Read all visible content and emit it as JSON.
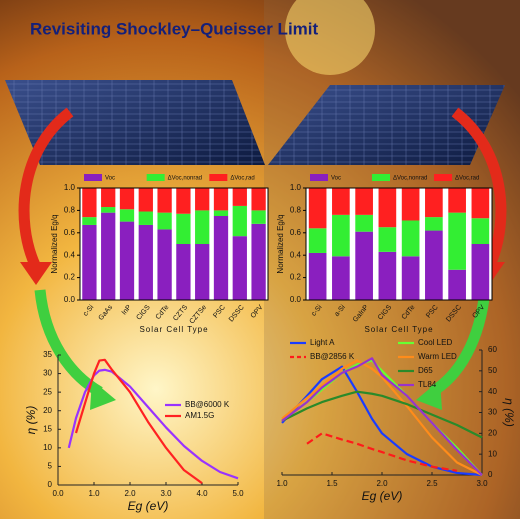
{
  "title": "Revisiting Shockley–Queisser Limit",
  "chart_data": [
    {
      "type": "stacked-bar",
      "ylabel": "Normalized Eg/q",
      "xlabel": "Solar Cell Type",
      "categories": [
        "c-Si",
        "GaAs",
        "InP",
        "CIGS",
        "CdTe",
        "CZTS",
        "CZTSe",
        "PSC",
        "DSSC",
        "OPV"
      ],
      "series": [
        {
          "name": "Voc",
          "color": "#8a1fbf",
          "values": [
            0.67,
            0.78,
            0.7,
            0.67,
            0.63,
            0.5,
            0.5,
            0.75,
            0.57,
            0.68
          ]
        },
        {
          "name": "ΔVoc,nonrad",
          "color": "#33ee33",
          "values": [
            0.07,
            0.05,
            0.11,
            0.12,
            0.15,
            0.27,
            0.3,
            0.05,
            0.27,
            0.12
          ]
        },
        {
          "name": "ΔVoc,rad",
          "color": "#ff2020",
          "values": [
            0.26,
            0.17,
            0.19,
            0.21,
            0.22,
            0.23,
            0.2,
            0.2,
            0.16,
            0.2
          ]
        }
      ],
      "ylim": [
        0,
        1
      ],
      "yticks": [
        {
          "value": 0,
          "label": "0.0"
        },
        0.2,
        0.4,
        0.6,
        0.8,
        {
          "value": 1,
          "label": "1.0"
        }
      ]
    },
    {
      "type": "stacked-bar",
      "ylabel": "Normalized Eg/q",
      "xlabel": "Solar Cell Type",
      "categories": [
        "c-Si",
        "a-Si",
        "GaInP",
        "CIGS",
        "CdTe",
        "PSC",
        "DSSC",
        "OPV"
      ],
      "series": [
        {
          "name": "Voc",
          "color": "#8a1fbf",
          "values": [
            0.42,
            0.39,
            0.61,
            0.43,
            0.39,
            0.62,
            0.27,
            0.5
          ]
        },
        {
          "name": "ΔVoc,nonrad",
          "color": "#33ee33",
          "values": [
            0.22,
            0.37,
            0.15,
            0.22,
            0.32,
            0.12,
            0.51,
            0.23
          ]
        },
        {
          "name": "ΔVoc,rad",
          "color": "#ff2020",
          "values": [
            0.36,
            0.24,
            0.24,
            0.35,
            0.29,
            0.26,
            0.22,
            0.27
          ]
        }
      ],
      "ylim": [
        0,
        1
      ],
      "yticks": [
        {
          "value": 0,
          "label": "0.0"
        },
        0.2,
        0.4,
        0.6,
        0.8,
        {
          "value": 1,
          "label": "1.0"
        }
      ]
    },
    {
      "type": "line",
      "xlabel": "Eg (eV)",
      "ylabel": "η (%)",
      "x": [
        0.3,
        0.5,
        0.75,
        1.0,
        1.15,
        1.3,
        1.5,
        2.0,
        2.5,
        3.0,
        3.5,
        4.0,
        4.5,
        5.0
      ],
      "series": [
        {
          "name": "BB@6000 K",
          "color": "#9933ff",
          "values": [
            10,
            18,
            25,
            29.5,
            30.8,
            31,
            30.5,
            26.5,
            21,
            15.5,
            10.5,
            6.5,
            3.5,
            1.8
          ]
        },
        {
          "name": "AM1.5G",
          "color": "#ff2222",
          "values": [
            null,
            14,
            22,
            30,
            33.5,
            33.7,
            31,
            25,
            17,
            10,
            4,
            0.5,
            null,
            null
          ]
        }
      ],
      "xlim": [
        0,
        5
      ],
      "xticks": [
        {
          "value": 0,
          "label": "0.0"
        },
        {
          "value": 1,
          "label": "1.0"
        },
        {
          "value": 2,
          "label": "2.0"
        },
        {
          "value": 3,
          "label": "3.0"
        },
        {
          "value": 4,
          "label": "4.0"
        },
        {
          "value": 5,
          "label": "5.0"
        }
      ],
      "ylim": [
        0,
        35
      ],
      "yticks": [
        0,
        5,
        10,
        15,
        20,
        25,
        30,
        35
      ]
    },
    {
      "type": "line",
      "xlabel": "Eg (eV)",
      "ylabel": "η (%)",
      "x": [
        1.0,
        1.25,
        1.4,
        1.6,
        1.75,
        1.9,
        2.0,
        2.25,
        2.5,
        2.75,
        3.0
      ],
      "series": [
        {
          "name": "Light A",
          "color": "#1a3cff",
          "values": [
            25,
            38,
            46,
            52,
            40,
            27,
            20,
            10,
            4,
            1,
            0
          ]
        },
        {
          "name": "BB@2856 K",
          "color": "#ff1a1a",
          "dash": true,
          "values": [
            null,
            15,
            20,
            17,
            15,
            12.5,
            11,
            7,
            4,
            2,
            null
          ]
        },
        {
          "name": "Cool LED",
          "color": "#66ff33",
          "values": [
            26,
            35,
            41,
            49,
            53,
            55,
            50,
            38,
            25,
            13,
            0
          ]
        },
        {
          "name": "Warm LED",
          "color": "#ff8c1a",
          "values": [
            27,
            37,
            43,
            51,
            55,
            51,
            47,
            33,
            18,
            6,
            0
          ]
        },
        {
          "name": "D65",
          "color": "#2a8a2a",
          "values": [
            26,
            32,
            35,
            38,
            40,
            39,
            38,
            34,
            29,
            24,
            18
          ]
        },
        {
          "name": "TL84",
          "color": "#9933cc",
          "values": [
            26,
            35,
            42,
            49,
            52,
            56,
            48,
            38,
            25,
            12,
            0
          ]
        }
      ],
      "xlim": [
        1,
        3
      ],
      "xticks": [
        {
          "value": 1,
          "label": "1.0"
        },
        1.5,
        {
          "value": 2,
          "label": "2.0"
        },
        2.5,
        {
          "value": 3,
          "label": "3.0"
        }
      ],
      "ylim": [
        0,
        60
      ],
      "yticks": [
        0,
        10,
        20,
        30,
        40,
        50,
        60
      ]
    }
  ]
}
